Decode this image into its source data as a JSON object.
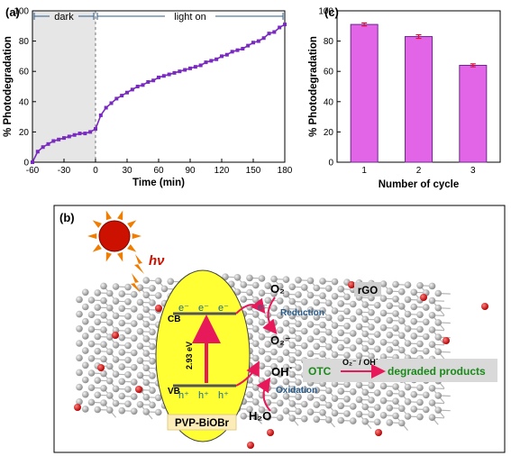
{
  "panel_a": {
    "label": "(a)"
  },
  "panel_b": {
    "label": "(b)",
    "hv": "hν",
    "cb": "CB",
    "vb": "VB",
    "electron": "e⁻",
    "hole": "h⁺",
    "gap": "2.93 eV",
    "o2": "O₂",
    "superoxide": "O₂⁻",
    "oh_radical": "OH˙",
    "h2o": "H₂O",
    "reduction": "Reduction",
    "oxidation": "Oxidation",
    "rgo": "rGO",
    "catalyst": "PVP-BiOBr",
    "otc": "OTC",
    "radicals": "O₂⁻ / OH˙",
    "products": "degraded products",
    "colors": {
      "sun": "#cc1100",
      "ray": "#f07c00",
      "ellipse": "#ffff33",
      "arrow": "#e8195a",
      "green": "#1b8a1b",
      "blue": "#2b5c8a",
      "atom": "#a0a0a0",
      "oxygen": "#cc1111"
    }
  },
  "chart_data": [
    {
      "panel": "(a)",
      "type": "line",
      "xlabel": "Time (min)",
      "ylabel": "% Photodegradation",
      "xlim": [
        -60,
        180
      ],
      "ylim": [
        0,
        100
      ],
      "xticks": [
        -60,
        -30,
        0,
        30,
        60,
        90,
        120,
        150,
        180
      ],
      "yticks": [
        0,
        20,
        40,
        60,
        80,
        100
      ],
      "annotations": [
        "dark",
        "light on"
      ],
      "shaded_region": [
        -60,
        0
      ],
      "color": "#7a2bbf",
      "series": [
        {
          "x": [
            -60,
            -55,
            -50,
            -45,
            -40,
            -35,
            -30,
            -25,
            -20,
            -15,
            -10,
            -5,
            0,
            5,
            10,
            15,
            20,
            25,
            30,
            35,
            40,
            45,
            50,
            55,
            60,
            65,
            70,
            75,
            80,
            85,
            90,
            95,
            100,
            105,
            110,
            115,
            120,
            125,
            130,
            135,
            140,
            145,
            150,
            155,
            160,
            165,
            170,
            175,
            180
          ],
          "y": [
            0,
            7,
            10,
            12,
            14,
            15,
            16,
            17,
            18,
            19,
            19,
            20,
            22,
            31,
            36,
            39,
            42,
            44,
            46,
            48,
            50,
            51,
            53,
            54,
            56,
            57,
            58,
            59,
            60,
            61,
            62,
            63,
            64,
            66,
            67,
            68,
            70,
            71,
            73,
            74,
            75,
            77,
            79,
            80,
            82,
            85,
            86,
            89,
            91
          ]
        }
      ]
    },
    {
      "panel": "(c)",
      "type": "bar",
      "xlabel": "Number of cycle",
      "ylabel": "% Photodegradation",
      "ylim": [
        0,
        100
      ],
      "yticks": [
        0,
        20,
        40,
        60,
        80,
        100
      ],
      "categories": [
        "1",
        "2",
        "3"
      ],
      "values": [
        91,
        83,
        64
      ],
      "errors": [
        1,
        1.2,
        1
      ],
      "bar_color": "#e265e8",
      "error_color": "#e0103a"
    }
  ]
}
